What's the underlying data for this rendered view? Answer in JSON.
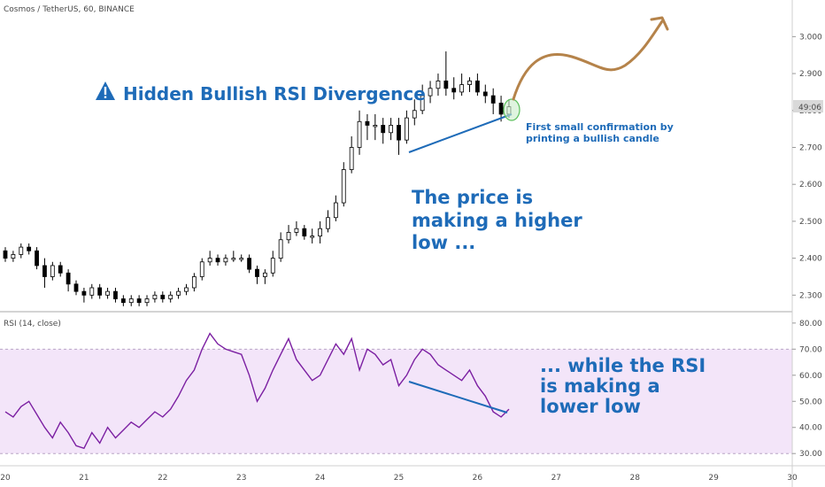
{
  "header": {
    "symbol_line": "Cosmos / TetherUS, 60, BINANCE",
    "rsi_line": "RSI (14, close)"
  },
  "price_badge": "49:06",
  "colors": {
    "candle_up": "#ffffff",
    "candle_down": "#000000",
    "wick": "#000000",
    "rsi_line": "#7b1fa2",
    "rsi_band": "#f3e5f9",
    "annotation_blue": "#1e6bb8",
    "arrow_brown": "#b5834a",
    "confirm_circle": "#8fd18f"
  },
  "annotations": {
    "title": "Hidden Bullish RSI Divergence",
    "confirmation_line1": "First small confirmation by",
    "confirmation_line2": "printing a bullish candle",
    "price_text": [
      "The price is",
      "making a higher",
      "low ..."
    ],
    "rsi_text": [
      "... while the RSI",
      "is making a",
      "lower low"
    ]
  },
  "chart_data": [
    {
      "type": "candlestick",
      "title": "Cosmos / TetherUS, 60, BINANCE",
      "x_ticks": [
        "20",
        "21",
        "22",
        "23",
        "24",
        "25",
        "26",
        "27",
        "28",
        "29",
        "30"
      ],
      "y_ticks": [
        "2.300",
        "2.400",
        "2.500",
        "2.600",
        "2.700",
        "2.800",
        "2.900",
        "3.000"
      ],
      "ylim": [
        2.26,
        3.08
      ],
      "xlim": [
        20.0,
        30.0
      ],
      "series": {
        "x": [
          20.0,
          20.1,
          20.2,
          20.3,
          20.4,
          20.5,
          20.6,
          20.7,
          20.8,
          20.9,
          21.0,
          21.1,
          21.2,
          21.3,
          21.4,
          21.5,
          21.6,
          21.7,
          21.8,
          21.9,
          22.0,
          22.1,
          22.2,
          22.3,
          22.4,
          22.5,
          22.6,
          22.7,
          22.8,
          22.9,
          23.0,
          23.1,
          23.2,
          23.3,
          23.4,
          23.5,
          23.6,
          23.7,
          23.8,
          23.9,
          24.0,
          24.1,
          24.2,
          24.3,
          24.4,
          24.5,
          24.6,
          24.7,
          24.8,
          24.9,
          25.0,
          25.1,
          25.2,
          25.3,
          25.4,
          25.5,
          25.6,
          25.7,
          25.8,
          25.9,
          26.0,
          26.1,
          26.2,
          26.3,
          26.4
        ],
        "open": [
          2.42,
          2.4,
          2.41,
          2.43,
          2.42,
          2.38,
          2.35,
          2.38,
          2.36,
          2.33,
          2.31,
          2.3,
          2.32,
          2.3,
          2.31,
          2.29,
          2.28,
          2.29,
          2.28,
          2.29,
          2.3,
          2.29,
          2.3,
          2.31,
          2.32,
          2.35,
          2.39,
          2.4,
          2.39,
          2.4,
          2.4,
          2.4,
          2.37,
          2.35,
          2.36,
          2.4,
          2.45,
          2.47,
          2.48,
          2.46,
          2.46,
          2.48,
          2.51,
          2.55,
          2.64,
          2.7,
          2.77,
          2.76,
          2.76,
          2.74,
          2.76,
          2.72,
          2.78,
          2.8,
          2.84,
          2.86,
          2.88,
          2.86,
          2.85,
          2.87,
          2.88,
          2.85,
          2.84,
          2.82,
          2.79
        ],
        "close": [
          2.4,
          2.41,
          2.43,
          2.42,
          2.38,
          2.35,
          2.38,
          2.36,
          2.33,
          2.31,
          2.3,
          2.32,
          2.3,
          2.31,
          2.29,
          2.28,
          2.29,
          2.28,
          2.29,
          2.3,
          2.29,
          2.3,
          2.31,
          2.32,
          2.35,
          2.39,
          2.4,
          2.39,
          2.4,
          2.4,
          2.4,
          2.37,
          2.35,
          2.36,
          2.4,
          2.45,
          2.47,
          2.48,
          2.46,
          2.46,
          2.48,
          2.51,
          2.55,
          2.64,
          2.7,
          2.77,
          2.76,
          2.76,
          2.74,
          2.76,
          2.72,
          2.78,
          2.8,
          2.84,
          2.86,
          2.88,
          2.86,
          2.85,
          2.87,
          2.88,
          2.85,
          2.84,
          2.82,
          2.79,
          2.81
        ],
        "high": [
          2.43,
          2.42,
          2.44,
          2.44,
          2.43,
          2.4,
          2.39,
          2.39,
          2.37,
          2.34,
          2.32,
          2.33,
          2.33,
          2.32,
          2.32,
          2.3,
          2.3,
          2.3,
          2.3,
          2.31,
          2.31,
          2.31,
          2.32,
          2.33,
          2.36,
          2.4,
          2.42,
          2.41,
          2.41,
          2.42,
          2.41,
          2.41,
          2.38,
          2.37,
          2.42,
          2.47,
          2.49,
          2.5,
          2.49,
          2.48,
          2.5,
          2.53,
          2.57,
          2.66,
          2.73,
          2.8,
          2.79,
          2.79,
          2.78,
          2.78,
          2.78,
          2.8,
          2.83,
          2.87,
          2.88,
          2.9,
          2.96,
          2.89,
          2.9,
          2.89,
          2.9,
          2.87,
          2.86,
          2.84,
          2.83
        ],
        "low": [
          2.39,
          2.39,
          2.4,
          2.41,
          2.37,
          2.32,
          2.34,
          2.35,
          2.31,
          2.3,
          2.28,
          2.29,
          2.29,
          2.29,
          2.28,
          2.27,
          2.27,
          2.27,
          2.27,
          2.28,
          2.28,
          2.28,
          2.29,
          2.3,
          2.31,
          2.34,
          2.38,
          2.38,
          2.38,
          2.39,
          2.39,
          2.36,
          2.33,
          2.33,
          2.35,
          2.39,
          2.44,
          2.46,
          2.45,
          2.44,
          2.44,
          2.47,
          2.5,
          2.54,
          2.63,
          2.68,
          2.72,
          2.72,
          2.71,
          2.72,
          2.68,
          2.71,
          2.76,
          2.79,
          2.82,
          2.84,
          2.84,
          2.83,
          2.84,
          2.85,
          2.84,
          2.82,
          2.79,
          2.77,
          2.78
        ]
      }
    },
    {
      "type": "line",
      "title": "RSI (14, close)",
      "x_ticks": [
        "20",
        "21",
        "22",
        "23",
        "24",
        "25",
        "26",
        "27",
        "28",
        "29",
        "30"
      ],
      "y_ticks": [
        "30.00",
        "40.00",
        "50.00",
        "60.00",
        "70.00",
        "80.00"
      ],
      "ylim": [
        26,
        83
      ],
      "xlim": [
        20.0,
        30.0
      ],
      "band": [
        30,
        70
      ],
      "series": [
        {
          "x": [
            20.0,
            20.1,
            20.2,
            20.3,
            20.4,
            20.5,
            20.6,
            20.7,
            20.8,
            20.9,
            21.0,
            21.1,
            21.2,
            21.3,
            21.4,
            21.5,
            21.6,
            21.7,
            21.8,
            21.9,
            22.0,
            22.1,
            22.2,
            22.3,
            22.4,
            22.5,
            22.6,
            22.7,
            22.8,
            22.9,
            23.0,
            23.1,
            23.2,
            23.3,
            23.4,
            23.5,
            23.6,
            23.7,
            23.8,
            23.9,
            24.0,
            24.1,
            24.2,
            24.3,
            24.4,
            24.5,
            24.6,
            24.7,
            24.8,
            24.9,
            25.0,
            25.1,
            25.2,
            25.3,
            25.4,
            25.5,
            25.6,
            25.7,
            25.8,
            25.9,
            26.0,
            26.1,
            26.2,
            26.3,
            26.4
          ],
          "values": [
            46,
            44,
            48,
            50,
            45,
            40,
            36,
            42,
            38,
            33,
            32,
            38,
            34,
            40,
            36,
            39,
            42,
            40,
            43,
            46,
            44,
            47,
            52,
            58,
            62,
            70,
            76,
            72,
            70,
            69,
            68,
            60,
            50,
            55,
            62,
            68,
            74,
            66,
            62,
            58,
            60,
            66,
            72,
            68,
            74,
            62,
            70,
            68,
            64,
            66,
            56,
            60,
            66,
            70,
            68,
            64,
            62,
            60,
            58,
            62,
            56,
            52,
            46,
            44,
            47
          ]
        }
      ]
    }
  ]
}
